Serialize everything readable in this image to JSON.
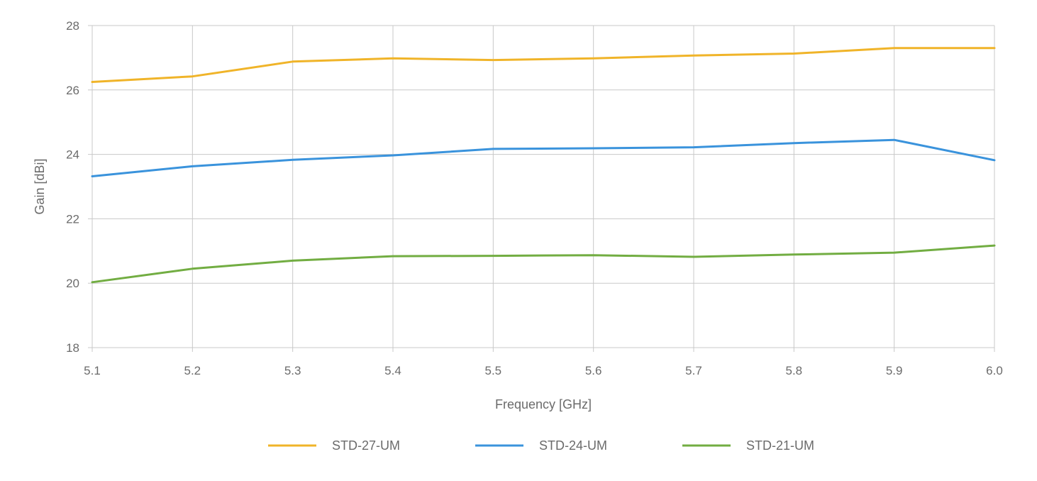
{
  "chart_data": {
    "type": "line",
    "title": "",
    "xlabel": "Frequency [GHz]",
    "ylabel": "Gain [dBi]",
    "xlim": [
      5.1,
      6.0
    ],
    "ylim": [
      18,
      28
    ],
    "x_ticks": [
      "5.1",
      "5.2",
      "5.3",
      "5.4",
      "5.5",
      "5.6",
      "5.7",
      "5.8",
      "5.9",
      "6.0"
    ],
    "y_ticks": [
      "18",
      "20",
      "22",
      "24",
      "26",
      "28"
    ],
    "x_tick_values": [
      5.1,
      5.2,
      5.3,
      5.4,
      5.5,
      5.6,
      5.7,
      5.8,
      5.9,
      6.0
    ],
    "y_tick_values": [
      18,
      20,
      22,
      24,
      26,
      28
    ],
    "grid": true,
    "legend_position": "bottom",
    "series": [
      {
        "name": "STD-27-UM",
        "color": "#f0b429",
        "x": [
          5.1,
          5.2,
          5.3,
          5.4,
          5.5,
          5.6,
          5.7,
          5.8,
          5.9,
          6.0
        ],
        "y": [
          26.25,
          26.42,
          26.88,
          26.98,
          26.93,
          26.98,
          27.07,
          27.13,
          27.3,
          27.3
        ]
      },
      {
        "name": "STD-24-UM",
        "color": "#3a93dc",
        "x": [
          5.1,
          5.2,
          5.3,
          5.4,
          5.5,
          5.6,
          5.7,
          5.8,
          5.9,
          6.0
        ],
        "y": [
          23.32,
          23.63,
          23.83,
          23.97,
          24.17,
          24.19,
          24.22,
          24.35,
          24.45,
          23.82
        ]
      },
      {
        "name": "STD-21-UM",
        "color": "#72ad42",
        "x": [
          5.1,
          5.2,
          5.3,
          5.4,
          5.5,
          5.6,
          5.7,
          5.8,
          5.9,
          6.0
        ],
        "y": [
          20.03,
          20.45,
          20.7,
          20.84,
          20.85,
          20.87,
          20.82,
          20.89,
          20.95,
          21.17
        ]
      }
    ]
  }
}
